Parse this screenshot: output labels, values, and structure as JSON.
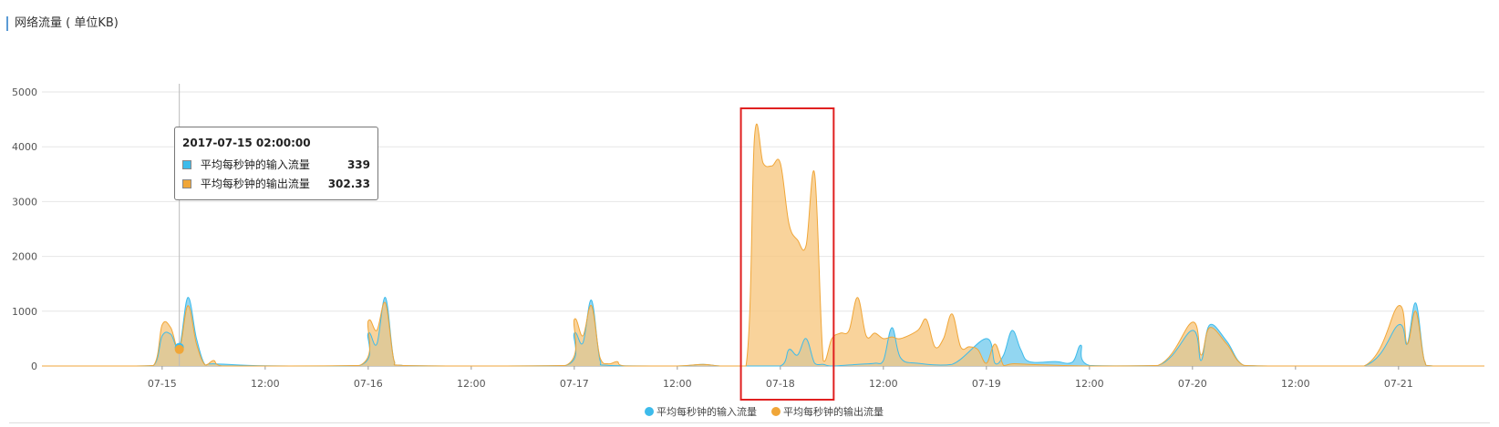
{
  "title": "网络流量 ( 单位KB)",
  "tooltip": {
    "title": "2017-07-15 02:00:00",
    "rows": [
      {
        "name": "平均每秒钟的输入流量",
        "value": "339"
      },
      {
        "name": "平均每秒钟的输出流量",
        "value": "302.33"
      }
    ]
  },
  "colors": {
    "input": "#3dbbeb",
    "output": "#f0a638",
    "output_fill": "#f7c77f",
    "input_fill": "#7fcfee",
    "grid": "#e6e6e6",
    "highlight_box": "#e02020"
  },
  "chart_data": {
    "type": "area",
    "title": "网络流量 ( 单位KB)",
    "ylim": [
      0,
      5000
    ],
    "yticks": [
      0,
      1000,
      2000,
      3000,
      4000,
      5000
    ],
    "x_range_hours": [
      0,
      168
    ],
    "xtick_labels": [
      "07-15",
      "12:00",
      "07-16",
      "12:00",
      "07-17",
      "12:00",
      "07-18",
      "12:00",
      "07-19",
      "12:00",
      "07-20",
      "12:00",
      "07-21"
    ],
    "legend": [
      "平均每秒钟的输入流量",
      "平均每秒钟的输出流量"
    ],
    "legend_position": "bottom-center",
    "series": [
      {
        "name": "平均每秒钟的输入流量",
        "points": [
          [
            "07-14 10:00",
            0
          ],
          [
            "07-14 20:00",
            0
          ],
          [
            "07-14 23:00",
            10
          ],
          [
            "07-15 00:00",
            550
          ],
          [
            "07-15 01:00",
            580
          ],
          [
            "07-15 02:00",
            339
          ],
          [
            "07-15 03:00",
            1250
          ],
          [
            "07-15 04:00",
            500
          ],
          [
            "07-15 05:00",
            20
          ],
          [
            "07-15 06:00",
            40
          ],
          [
            "07-15 12:00",
            5
          ],
          [
            "07-15 23:00",
            10
          ],
          [
            "07-16 00:00",
            600
          ],
          [
            "07-16 01:00",
            400
          ],
          [
            "07-16 02:00",
            1250
          ],
          [
            "07-16 03:00",
            100
          ],
          [
            "07-16 04:00",
            10
          ],
          [
            "07-16 12:00",
            0
          ],
          [
            "07-16 23:00",
            10
          ],
          [
            "07-17 00:00",
            600
          ],
          [
            "07-17 01:00",
            420
          ],
          [
            "07-17 02:00",
            1200
          ],
          [
            "07-17 03:00",
            100
          ],
          [
            "07-17 04:00",
            10
          ],
          [
            "07-17 12:00",
            0
          ],
          [
            "07-17 15:00",
            30
          ],
          [
            "07-17 17:00",
            0
          ],
          [
            "07-17 20:00",
            0
          ],
          [
            "07-18 00:00",
            0
          ],
          [
            "07-18 01:00",
            300
          ],
          [
            "07-18 02:00",
            200
          ],
          [
            "07-18 03:00",
            500
          ],
          [
            "07-18 04:00",
            50
          ],
          [
            "07-18 05:00",
            30
          ],
          [
            "07-18 06:00",
            0
          ],
          [
            "07-18 09:00",
            30
          ],
          [
            "07-18 11:00",
            50
          ],
          [
            "07-18 12:00",
            100
          ],
          [
            "07-18 13:00",
            700
          ],
          [
            "07-18 14:00",
            150
          ],
          [
            "07-18 16:00",
            50
          ],
          [
            "07-18 20:00",
            30
          ],
          [
            "07-19 00:00",
            500
          ],
          [
            "07-19 01:00",
            50
          ],
          [
            "07-19 02:00",
            200
          ],
          [
            "07-19 03:00",
            650
          ],
          [
            "07-19 04:00",
            300
          ],
          [
            "07-19 05:00",
            80
          ],
          [
            "07-19 08:00",
            80
          ],
          [
            "07-19 10:00",
            70
          ],
          [
            "07-19 11:00",
            380
          ],
          [
            "07-19 12:00",
            10
          ],
          [
            "07-19 20:00",
            10
          ],
          [
            "07-20 00:00",
            650
          ],
          [
            "07-20 01:00",
            100
          ],
          [
            "07-20 02:00",
            750
          ],
          [
            "07-20 04:00",
            450
          ],
          [
            "07-20 06:00",
            10
          ],
          [
            "07-20 10:00",
            0
          ],
          [
            "07-20 20:00",
            0
          ],
          [
            "07-21 00:00",
            750
          ],
          [
            "07-21 01:00",
            400
          ],
          [
            "07-21 02:00",
            1150
          ],
          [
            "07-21 03:00",
            100
          ],
          [
            "07-21 04:00",
            0
          ],
          [
            "07-21 10:00",
            0
          ]
        ]
      },
      {
        "name": "平均每秒钟的输出流量",
        "points": [
          [
            "07-14 10:00",
            0
          ],
          [
            "07-14 20:00",
            0
          ],
          [
            "07-14 23:00",
            10
          ],
          [
            "07-15 00:00",
            750
          ],
          [
            "07-15 01:00",
            700
          ],
          [
            "07-15 02:00",
            302.33
          ],
          [
            "07-15 03:00",
            1100
          ],
          [
            "07-15 04:00",
            400
          ],
          [
            "07-15 05:00",
            20
          ],
          [
            "07-15 06:00",
            100
          ],
          [
            "07-15 07:00",
            0
          ],
          [
            "07-15 12:00",
            0
          ],
          [
            "07-15 23:00",
            10
          ],
          [
            "07-16 00:00",
            820
          ],
          [
            "07-16 01:00",
            650
          ],
          [
            "07-16 02:00",
            1150
          ],
          [
            "07-16 03:00",
            100
          ],
          [
            "07-16 04:00",
            10
          ],
          [
            "07-16 12:00",
            0
          ],
          [
            "07-16 23:00",
            10
          ],
          [
            "07-17 00:00",
            850
          ],
          [
            "07-17 01:00",
            550
          ],
          [
            "07-17 02:00",
            1100
          ],
          [
            "07-17 03:00",
            150
          ],
          [
            "07-17 04:00",
            40
          ],
          [
            "07-17 05:00",
            80
          ],
          [
            "07-17 06:00",
            0
          ],
          [
            "07-17 12:00",
            0
          ],
          [
            "07-17 15:00",
            30
          ],
          [
            "07-17 17:00",
            0
          ],
          [
            "07-17 20:00",
            0
          ],
          [
            "07-17 21:00",
            4200
          ],
          [
            "07-17 22:00",
            3700
          ],
          [
            "07-17 23:00",
            3650
          ],
          [
            "07-18 00:00",
            3700
          ],
          [
            "07-18 01:00",
            2600
          ],
          [
            "07-18 02:00",
            2300
          ],
          [
            "07-18 03:00",
            2200
          ],
          [
            "07-18 04:00",
            3500
          ],
          [
            "07-18 05:00",
            100
          ],
          [
            "07-18 06:00",
            500
          ],
          [
            "07-18 07:00",
            600
          ],
          [
            "07-18 08:00",
            650
          ],
          [
            "07-18 09:00",
            1250
          ],
          [
            "07-18 10:00",
            550
          ],
          [
            "07-18 11:00",
            600
          ],
          [
            "07-18 12:00",
            500
          ],
          [
            "07-18 13:00",
            530
          ],
          [
            "07-18 14:00",
            500
          ],
          [
            "07-18 16:00",
            650
          ],
          [
            "07-18 17:00",
            850
          ],
          [
            "07-18 18:00",
            350
          ],
          [
            "07-18 19:00",
            500
          ],
          [
            "07-18 20:00",
            950
          ],
          [
            "07-18 21:00",
            350
          ],
          [
            "07-18 22:00",
            350
          ],
          [
            "07-18 23:00",
            300
          ],
          [
            "07-19 00:00",
            50
          ],
          [
            "07-19 01:00",
            400
          ],
          [
            "07-19 02:00",
            10
          ],
          [
            "07-19 03:00",
            40
          ],
          [
            "07-19 05:00",
            30
          ],
          [
            "07-19 12:00",
            0
          ],
          [
            "07-19 20:00",
            10
          ],
          [
            "07-20 00:00",
            800
          ],
          [
            "07-20 01:00",
            200
          ],
          [
            "07-20 02:00",
            700
          ],
          [
            "07-20 04:00",
            400
          ],
          [
            "07-20 06:00",
            10
          ],
          [
            "07-20 10:00",
            0
          ],
          [
            "07-20 20:00",
            0
          ],
          [
            "07-21 00:00",
            1100
          ],
          [
            "07-21 01:00",
            400
          ],
          [
            "07-21 02:00",
            1000
          ],
          [
            "07-21 03:00",
            100
          ],
          [
            "07-21 04:00",
            0
          ],
          [
            "07-21 10:00",
            0
          ]
        ]
      }
    ],
    "crosshair": "07-15 02:00:00",
    "highlight_region": [
      "07-17 21:00",
      "07-18 06:00"
    ]
  }
}
